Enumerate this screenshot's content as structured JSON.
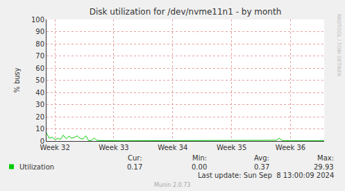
{
  "chart_data": {
    "type": "line",
    "title": "Disk utilization for /dev/nvme11n1 - by month",
    "y_label": "% busy",
    "categories": [
      null,
      null,
      null,
      "Week 32",
      null,
      null,
      null,
      null,
      null,
      null,
      null,
      null,
      null,
      null,
      null,
      null,
      null,
      null,
      null,
      null,
      null,
      null,
      null,
      null,
      "Week 33",
      null,
      null,
      null,
      null,
      null,
      null,
      null,
      null,
      null,
      null,
      null,
      null,
      null,
      null,
      null,
      null,
      null,
      null,
      null,
      null,
      "Week 34",
      null,
      null,
      null,
      null,
      null,
      null,
      null,
      null,
      null,
      null,
      null,
      null,
      null,
      null,
      null,
      null,
      null,
      null,
      null,
      null,
      "Week 35",
      null,
      null,
      null,
      null,
      null,
      null,
      null,
      null,
      null,
      null,
      null,
      null,
      null,
      null,
      null,
      null,
      null,
      null,
      null,
      null,
      "Week 36",
      null,
      null,
      null,
      null,
      null,
      null,
      null,
      null,
      null,
      null,
      null,
      null
    ],
    "series": [
      {
        "name": "Utilization",
        "color": "#00cc00",
        "values": [
          6.5,
          2.2,
          3.1,
          1.2,
          2.0,
          1.5,
          4.8,
          1.8,
          3.9,
          2.4,
          3.0,
          4.2,
          2.1,
          1.6,
          4.3,
          0.4,
          0.3,
          2.4,
          0.5,
          0.3,
          0.2,
          0.2,
          0.3,
          0.2,
          0.2,
          0.2,
          0.3,
          0.2,
          0.2,
          0.2,
          0.2,
          0.3,
          0.6,
          0.2,
          0.2,
          0.2,
          0.2,
          0.3,
          0.2,
          0.2,
          0.2,
          0.2,
          0.2,
          0.3,
          0.2,
          0.2,
          0.2,
          0.2,
          0.2,
          0.2,
          0.2,
          0.2,
          0.3,
          0.2,
          0.2,
          0.2,
          0.5,
          0.2,
          0.2,
          0.2,
          0.2,
          0.2,
          0.2,
          0.2,
          0.3,
          0.2,
          0.2,
          0.2,
          0.2,
          0.2,
          0.2,
          0.2,
          0.2,
          0.3,
          0.2,
          0.2,
          0.2,
          0.2,
          0.2,
          0.2,
          0.2,
          0.3,
          0.6,
          2.3,
          0.5,
          0.2,
          0.2,
          0.2,
          0.2,
          0.2,
          0.2,
          0.2,
          0.2,
          0.3,
          0.2,
          0.2,
          0.2,
          0.2,
          0.6,
          0.2
        ],
        "stats": {
          "headers": [
            "Cur:",
            "Min:",
            "Avg:",
            "Max:"
          ],
          "values": [
            0.17,
            0,
            0.37,
            29.93
          ]
        }
      }
    ],
    "ylim": [
      0,
      100
    ],
    "yticks": [
      0,
      10,
      20,
      30,
      40,
      50,
      60,
      70,
      80,
      90,
      100
    ],
    "grid": true,
    "last_update": "Last update: Sun Sep  8 13:00:09 2024",
    "footer": "Munin 2.0.73",
    "watermark": "RRDTOOL / TOBI OETIKER"
  }
}
